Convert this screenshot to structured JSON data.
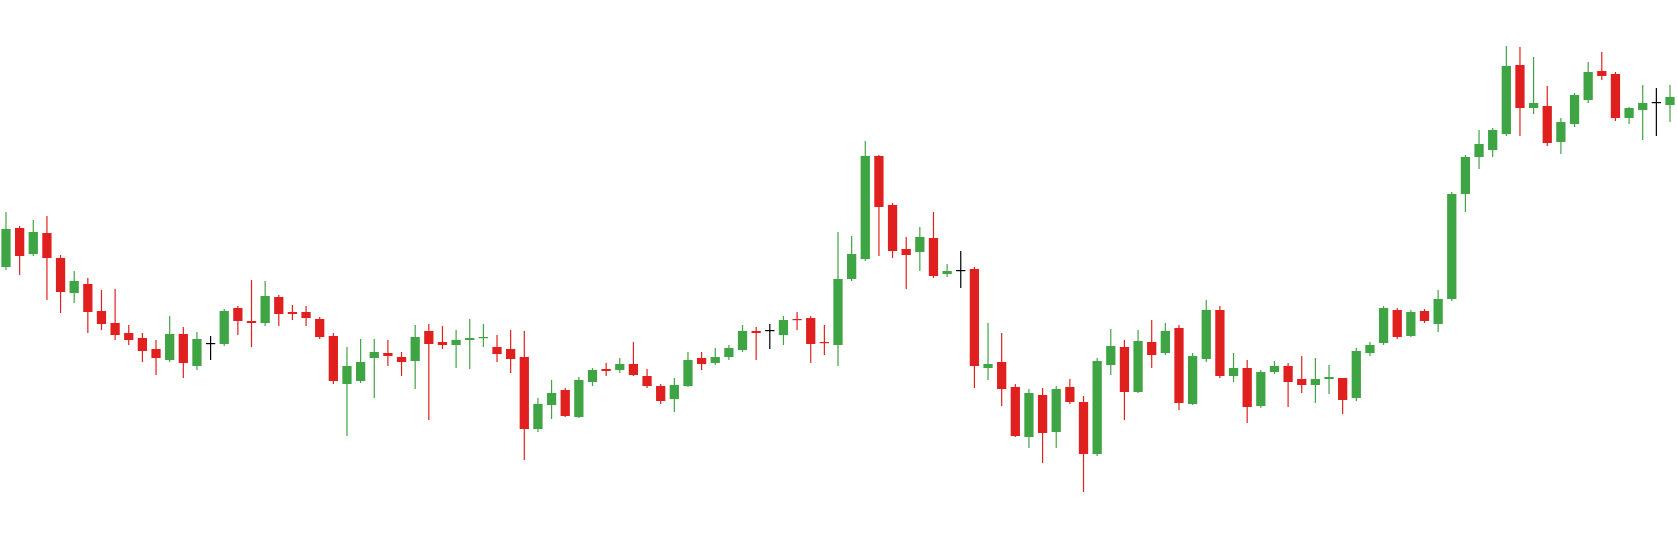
{
  "chart_data": {
    "type": "candlestick",
    "open": [
      284,
      323,
      297,
      318,
      293,
      258,
      267,
      240,
      228,
      218,
      213,
      202,
      191,
      217,
      185,
      208,
      207,
      243,
      230,
      228,
      254,
      239,
      239,
      232,
      215,
      167,
      170,
      193,
      198,
      194,
      190,
      220,
      209,
      206,
      211,
      213,
      204,
      202,
      194,
      122,
      146,
      161,
      134,
      169,
      182,
      181,
      187,
      175,
      165,
      152,
      165,
      193,
      188,
      194,
      201,
      220,
      221,
      216,
      232,
      233,
      209,
      206,
      272,
      292,
      395,
      346,
      302,
      299,
      313,
      277,
      281,
      282,
      183,
      189,
      164,
      114,
      156,
      119,
      164,
      149,
      97,
      186,
      204,
      159,
      209,
      198,
      223,
      147,
      192,
      241,
      175,
      183,
      145,
      179,
      185,
      172,
      166,
      172,
      173,
      153,
      198,
      208,
      241,
      215,
      240,
      227,
      252,
      357,
      394,
      401,
      417,
      486,
      443,
      445,
      409,
      427,
      451,
      480,
      477,
      433,
      441,
      449,
      446
    ],
    "high": [
      339,
      325,
      331,
      335,
      296,
      280,
      273,
      261,
      262,
      226,
      218,
      211,
      235,
      224,
      219,
      215,
      242,
      245,
      271,
      270,
      256,
      246,
      245,
      234,
      218,
      204,
      212,
      212,
      211,
      199,
      226,
      227,
      225,
      221,
      232,
      227,
      216,
      221,
      220,
      153,
      171,
      163,
      174,
      183,
      188,
      193,
      209,
      182,
      167,
      173,
      199,
      199,
      203,
      206,
      226,
      224,
      227,
      235,
      239,
      235,
      226,
      319,
      315,
      410,
      396,
      348,
      314,
      324,
      339,
      287,
      300,
      284,
      228,
      218,
      167,
      162,
      163,
      165,
      172,
      155,
      193,
      222,
      211,
      221,
      231,
      228,
      226,
      198,
      251,
      245,
      198,
      191,
      181,
      190,
      188,
      195,
      193,
      186,
      173,
      203,
      209,
      245,
      243,
      241,
      242,
      261,
      359,
      396,
      421,
      423,
      505,
      504,
      494,
      465,
      433,
      458,
      489,
      499,
      479,
      444,
      466,
      463,
      466
    ],
    "low": [
      281,
      276,
      295,
      251,
      238,
      248,
      218,
      221,
      211,
      206,
      189,
      176,
      189,
      173,
      181,
      191,
      205,
      216,
      204,
      225,
      225,
      231,
      225,
      212,
      167,
      115,
      168,
      153,
      185,
      175,
      162,
      131,
      202,
      183,
      182,
      204,
      189,
      178,
      91,
      119,
      132,
      134,
      133,
      165,
      175,
      178,
      175,
      163,
      147,
      139,
      164,
      181,
      186,
      191,
      199,
      191,
      202,
      206,
      221,
      188,
      196,
      185,
      270,
      290,
      295,
      293,
      262,
      280,
      273,
      274,
      263,
      163,
      171,
      145,
      114,
      103,
      88,
      103,
      147,
      59,
      95,
      176,
      131,
      158,
      183,
      196,
      141,
      146,
      189,
      173,
      169,
      128,
      143,
      177,
      144,
      158,
      148,
      157,
      137,
      150,
      195,
      206,
      212,
      214,
      228,
      219,
      250,
      339,
      382,
      394,
      415,
      415,
      437,
      405,
      397,
      424,
      448,
      471,
      430,
      427,
      411,
      415,
      429
    ],
    "close": [
      322,
      295,
      319,
      293,
      259,
      270,
      239,
      227,
      216,
      211,
      200,
      193,
      217,
      188,
      212,
      208,
      240,
      230,
      228,
      255,
      237,
      237,
      233,
      214,
      170,
      185,
      189,
      199,
      195,
      189,
      214,
      207,
      206,
      211,
      213,
      214,
      197,
      192,
      122,
      147,
      158,
      135,
      171,
      181,
      180,
      187,
      176,
      165,
      150,
      166,
      191,
      187,
      194,
      203,
      220,
      218,
      221,
      231,
      231,
      207,
      208,
      272,
      297,
      395,
      344,
      300,
      296,
      314,
      275,
      280,
      281,
      185,
      187,
      162,
      115,
      158,
      118,
      162,
      149,
      97,
      190,
      205,
      159,
      210,
      196,
      220,
      148,
      195,
      241,
      175,
      183,
      144,
      179,
      185,
      169,
      166,
      172,
      174,
      151,
      200,
      206,
      243,
      214,
      239,
      230,
      252,
      357,
      394,
      407,
      421,
      485,
      443,
      448,
      408,
      429,
      456,
      479,
      475,
      433,
      443,
      448,
      449,
      454
    ],
    "up_color": "#3fa444",
    "down_color": "#e0201f",
    "flat_color": "#000000",
    "ylim": [
      0,
      551
    ]
  }
}
